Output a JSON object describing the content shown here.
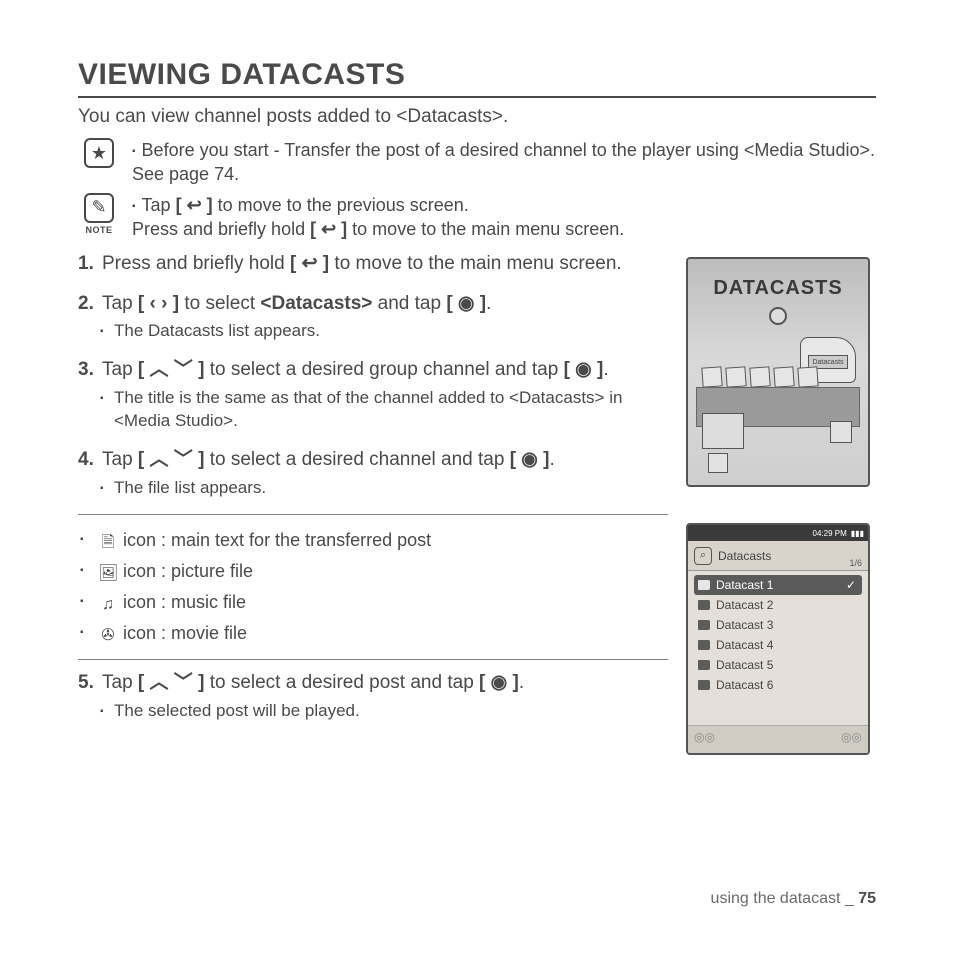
{
  "title": "VIEWING DATACASTS",
  "intro": "You can view channel posts added to <Datacasts>.",
  "notes": {
    "star": "Before you start - Transfer the post of a desired channel to the player using <Media Studio>. See page 74.",
    "pencil_line1_a": "Tap ",
    "pencil_line1_b": " to move to the previous screen.",
    "pencil_line2_a": "Press and briefly hold ",
    "pencil_line2_b": " to move to the main menu screen.",
    "note_label": "NOTE",
    "back_sym": "[ ↩ ]"
  },
  "steps": {
    "s1_a": "Press and briefly hold ",
    "s1_b": " to move to the main menu screen.",
    "s2_a": "Tap ",
    "s2_b": " to select ",
    "s2_c": "<Datacasts>",
    "s2_d": " and tap ",
    "s2_e": ".",
    "s2_sub": "The Datacasts list appears.",
    "s3_a": "Tap ",
    "s3_b": " to select a desired group channel and tap ",
    "s3_c": ".",
    "s3_sub": "The title is the same as that of the channel added to <Datacasts> in <Media Studio>.",
    "s4_a": "Tap ",
    "s4_b": " to select a desired channel and tap ",
    "s4_c": ".",
    "s4_sub": "The file list appears.",
    "s5_a": "Tap ",
    "s5_b": " to select a desired post and tap ",
    "s5_c": ".",
    "s5_sub": "The selected post will be played.",
    "lr_sym": "[ ‹  › ]",
    "ud_sym": "[ ︿ ﹀ ]",
    "sel_sym": "[ ◉ ]",
    "back_sym": "[ ↩ ]"
  },
  "iconlist": {
    "i1": " icon : main text for the transferred post",
    "i2": " icon : picture file",
    "i3": " icon : music file",
    "i4": " icon : movie file",
    "g1": "🗎",
    "g2": "🖼",
    "g3": "♫",
    "g4": "✇"
  },
  "device1": {
    "title": "DATACASTS",
    "flag": "Datacasts"
  },
  "device2": {
    "time": "04:29 PM",
    "batt": "▮▮▮",
    "header": "Datacasts",
    "count": "1/6",
    "rows": [
      "Datacast 1",
      "Datacast 2",
      "Datacast 3",
      "Datacast 4",
      "Datacast 5",
      "Datacast 6"
    ],
    "selected_index": 0
  },
  "footer": {
    "text": "using the datacast _ ",
    "page": "75"
  }
}
